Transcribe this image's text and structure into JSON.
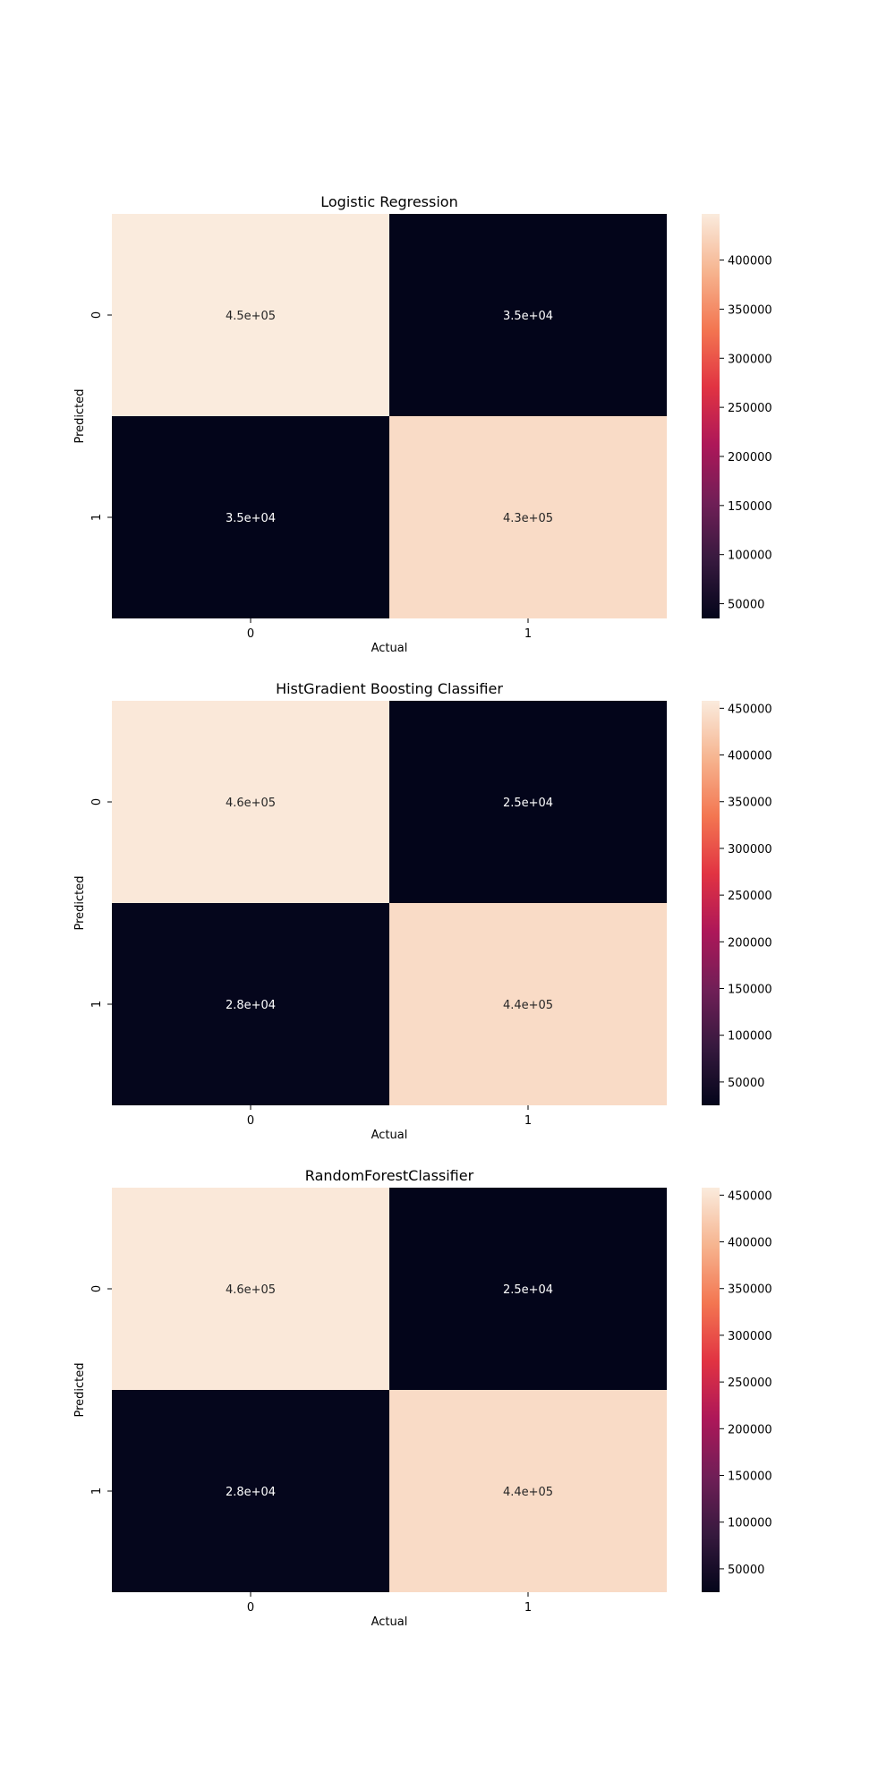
{
  "colormap": {
    "name": "rocket",
    "stops": [
      "#03051a",
      "#36193e",
      "#701f57",
      "#ad1759",
      "#e13342",
      "#f37651",
      "#f6b48f",
      "#faebdd"
    ]
  },
  "chart_data": [
    {
      "type": "heatmap",
      "title": "Logistic Regression",
      "xlabel": "Actual",
      "ylabel": "Predicted",
      "x_categories": [
        "0",
        "1"
      ],
      "y_categories": [
        "0",
        "1"
      ],
      "values": [
        [
          450000,
          35000
        ],
        [
          35000,
          430000
        ]
      ],
      "annotations": [
        [
          "4.5e+05",
          "3.5e+04"
        ],
        [
          "3.5e+04",
          "4.3e+05"
        ]
      ],
      "colorbar": {
        "min": 35000,
        "max": 447000,
        "ticks": [
          "50000",
          "100000",
          "150000",
          "200000",
          "250000",
          "300000",
          "350000",
          "400000"
        ]
      }
    },
    {
      "type": "heatmap",
      "title": "HistGradient Boosting Classifier",
      "xlabel": "Actual",
      "ylabel": "Predicted",
      "x_categories": [
        "0",
        "1"
      ],
      "y_categories": [
        "0",
        "1"
      ],
      "values": [
        [
          455000,
          25000
        ],
        [
          28000,
          440000
        ]
      ],
      "annotations": [
        [
          "4.6e+05",
          "2.5e+04"
        ],
        [
          "2.8e+04",
          "4.4e+05"
        ]
      ],
      "colorbar": {
        "min": 25000,
        "max": 458000,
        "ticks": [
          "50000",
          "100000",
          "150000",
          "200000",
          "250000",
          "300000",
          "350000",
          "400000",
          "450000"
        ]
      }
    },
    {
      "type": "heatmap",
      "title": "RandomForestClassifier",
      "xlabel": "Actual",
      "ylabel": "Predicted",
      "x_categories": [
        "0",
        "1"
      ],
      "y_categories": [
        "0",
        "1"
      ],
      "values": [
        [
          455000,
          25000
        ],
        [
          28000,
          440000
        ]
      ],
      "annotations": [
        [
          "4.6e+05",
          "2.5e+04"
        ],
        [
          "2.8e+04",
          "4.4e+05"
        ]
      ],
      "colorbar": {
        "min": 25000,
        "max": 458000,
        "ticks": [
          "50000",
          "100000",
          "150000",
          "200000",
          "250000",
          "300000",
          "350000",
          "400000",
          "450000"
        ]
      }
    }
  ]
}
